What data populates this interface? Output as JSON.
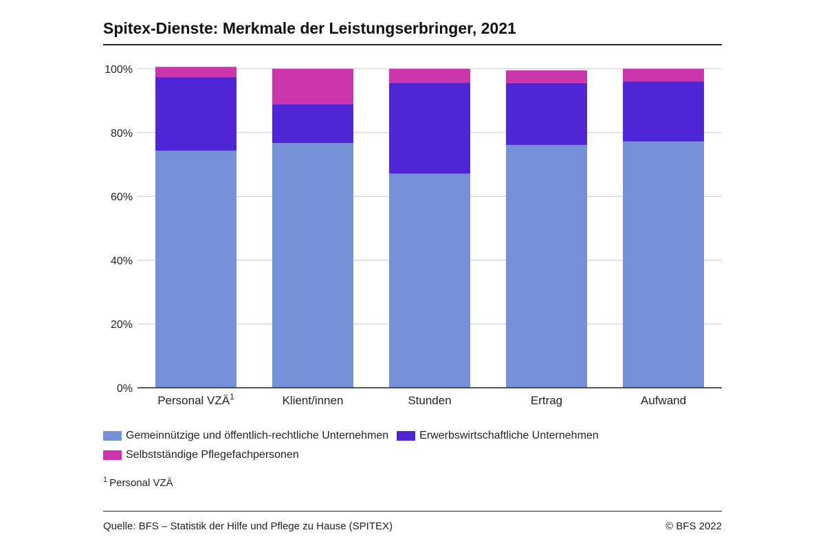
{
  "header": {
    "title": "Spitex-Dienste: Merkmale der Leistungserbringer, 2021"
  },
  "chart_data": {
    "type": "bar",
    "stacked": true,
    "categories": [
      "Personal VZÄ",
      "Klient/innen",
      "Stunden",
      "Ertrag",
      "Aufwand"
    ],
    "category_superscripts": [
      "1",
      "",
      "",
      "",
      ""
    ],
    "series": [
      {
        "name": "Gemeinnützige und öffentlich-rechtliche Unternehmen",
        "color": "#7591d8",
        "values": [
          74.3,
          76.7,
          67.1,
          76.1,
          77.2
        ]
      },
      {
        "name": "Erwerbswirtschaftliche Unternehmen",
        "color": "#4f26d5",
        "values": [
          23.0,
          12.1,
          28.5,
          19.4,
          18.8
        ]
      },
      {
        "name": "Selbstständige Pflegefachpersonen",
        "color": "#cc36ad",
        "values": [
          3.3,
          11.2,
          4.4,
          4.0,
          4.0
        ]
      }
    ],
    "y_ticks": [
      "0%",
      "20%",
      "40%",
      "60%",
      "80%",
      "100%"
    ],
    "ylim": [
      0,
      100
    ],
    "grid": true,
    "legend_position": "bottom"
  },
  "footnote": {
    "marker": "1",
    "text": "Personal VZÄ"
  },
  "footer": {
    "source": "Quelle: BFS – Statistik der Hilfe und Pflege zu Hause (SPITEX)",
    "copyright": "© BFS 2022"
  }
}
